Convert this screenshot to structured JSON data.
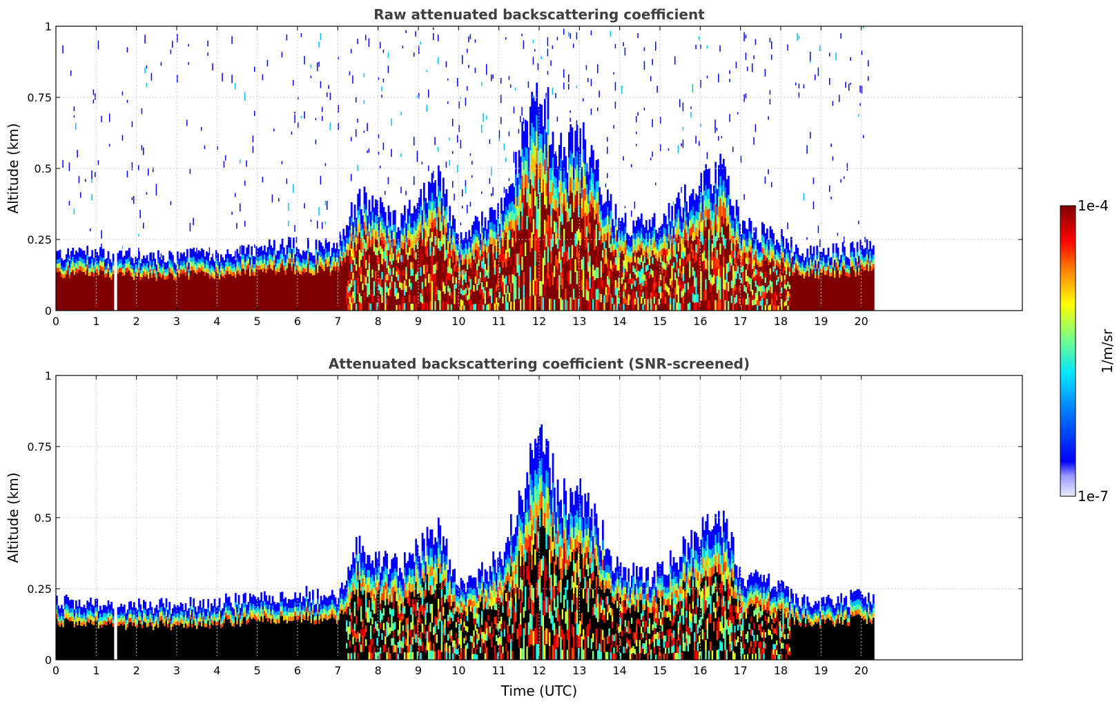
{
  "chart_data": [
    {
      "type": "heatmap",
      "title": "Raw attenuated backscattering coefficient",
      "xlabel": "",
      "ylabel": "Altitude (km)",
      "xlim": [
        0,
        24
      ],
      "ylim": [
        0,
        1
      ],
      "xticks": [
        "0",
        "1",
        "2",
        "3",
        "4",
        "5",
        "6",
        "7",
        "8",
        "9",
        "10",
        "11",
        "12",
        "13",
        "14",
        "15",
        "16",
        "17",
        "18",
        "19",
        "20"
      ],
      "yticks": [
        "0",
        "0.25",
        "0.5",
        "0.75",
        "1"
      ],
      "grid": true,
      "data_end_time": 20.3,
      "gap": [
        1.42,
        1.5
      ],
      "layer_top_km": [
        [
          0,
          0.2
        ],
        [
          1,
          0.2
        ],
        [
          2,
          0.19
        ],
        [
          3,
          0.19
        ],
        [
          4,
          0.2
        ],
        [
          5,
          0.22
        ],
        [
          6,
          0.23
        ],
        [
          7,
          0.22
        ],
        [
          7.5,
          0.4
        ],
        [
          8,
          0.35
        ],
        [
          8.5,
          0.32
        ],
        [
          9,
          0.38
        ],
        [
          9.5,
          0.45
        ],
        [
          10,
          0.25
        ],
        [
          11,
          0.35
        ],
        [
          11.5,
          0.55
        ],
        [
          12,
          0.8
        ],
        [
          12.5,
          0.55
        ],
        [
          13,
          0.6
        ],
        [
          13.5,
          0.45
        ],
        [
          14,
          0.3
        ],
        [
          15,
          0.3
        ],
        [
          16,
          0.45
        ],
        [
          16.5,
          0.5
        ],
        [
          17,
          0.3
        ],
        [
          18,
          0.25
        ],
        [
          18.5,
          0.2
        ],
        [
          19,
          0.2
        ],
        [
          20,
          0.22
        ],
        [
          20.3,
          0.22
        ]
      ],
      "colorscale": "jet",
      "log_scale": true
    },
    {
      "type": "heatmap",
      "title": "Attenuated backscattering coefficient (SNR-screened)",
      "xlabel": "Time (UTC)",
      "ylabel": "Altitude (km)",
      "xlim": [
        0,
        24
      ],
      "ylim": [
        0,
        1
      ],
      "xticks": [
        "0",
        "1",
        "2",
        "3",
        "4",
        "5",
        "6",
        "7",
        "8",
        "9",
        "10",
        "11",
        "12",
        "13",
        "14",
        "15",
        "16",
        "17",
        "18",
        "19",
        "20"
      ],
      "yticks": [
        "0",
        "0.25",
        "0.5",
        "0.75",
        "1"
      ],
      "grid": true,
      "data_end_time": 20.3,
      "gap": [
        1.42,
        1.5
      ],
      "layer_top_km": [
        [
          0,
          0.2
        ],
        [
          1,
          0.2
        ],
        [
          2,
          0.19
        ],
        [
          3,
          0.19
        ],
        [
          4,
          0.2
        ],
        [
          5,
          0.22
        ],
        [
          6,
          0.23
        ],
        [
          7,
          0.22
        ],
        [
          7.5,
          0.4
        ],
        [
          8,
          0.35
        ],
        [
          8.5,
          0.32
        ],
        [
          9,
          0.38
        ],
        [
          9.5,
          0.45
        ],
        [
          10,
          0.25
        ],
        [
          11,
          0.35
        ],
        [
          11.5,
          0.55
        ],
        [
          12,
          0.8
        ],
        [
          12.5,
          0.55
        ],
        [
          13,
          0.6
        ],
        [
          13.5,
          0.45
        ],
        [
          14,
          0.3
        ],
        [
          15,
          0.3
        ],
        [
          16,
          0.45
        ],
        [
          16.5,
          0.5
        ],
        [
          17,
          0.3
        ],
        [
          18,
          0.25
        ],
        [
          18.5,
          0.2
        ],
        [
          19,
          0.2
        ],
        [
          20,
          0.22
        ],
        [
          20.3,
          0.22
        ]
      ],
      "saturated_color": "#000000",
      "colorscale": "jet",
      "log_scale": true
    }
  ],
  "colorbar": {
    "label": "1/m/sr",
    "max_label": "1e-4",
    "min_label": "1e-7",
    "range": [
      1e-07,
      0.0001
    ],
    "log_scale": true
  },
  "colors": {
    "title": "#404040",
    "grid": "#c8c8c8",
    "saturated": "#7f0000"
  }
}
